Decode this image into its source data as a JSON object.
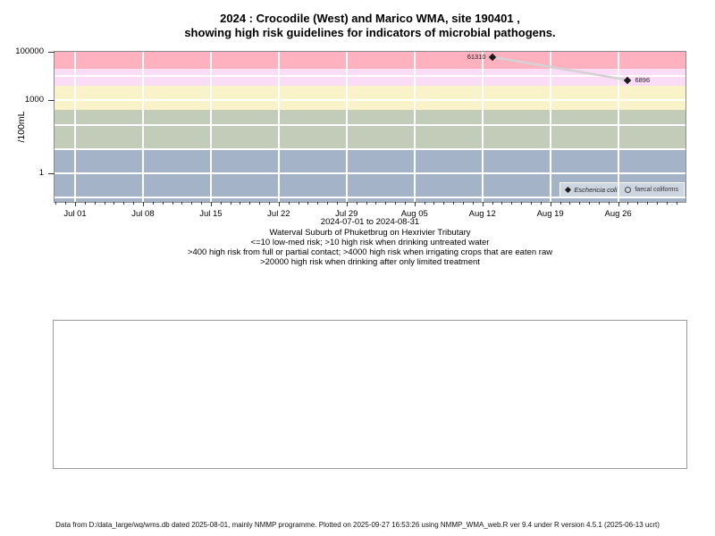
{
  "chart_data": {
    "type": "scatter",
    "title_lines": [
      "2024 : Crocodile (West) and Marico WMA, site 190401 ,",
      "showing high risk guidelines for indicators of microbial pathogens."
    ],
    "x_axis": {
      "label": "2024-07-01 to 2024-08-31",
      "tick_labels": [
        "Jul 01",
        "Jul 08",
        "Jul 15",
        "Jul 22",
        "Jul 29",
        "Aug 05",
        "Aug 12",
        "Aug 19",
        "Aug 26"
      ],
      "tick_days": [
        0,
        7,
        14,
        21,
        28,
        35,
        42,
        49,
        56
      ],
      "minor_tick_unit": "day",
      "range_days": [
        -2,
        62
      ]
    },
    "y_axis": {
      "label": "/100mL",
      "scale": "log10",
      "tick_labels": [
        "100000",
        "1000",
        "1"
      ],
      "tick_values": [
        100000,
        1000,
        1
      ],
      "top_value": 100000
    },
    "series": [
      {
        "name": "Eschericia coli",
        "symbol": "filled-diamond",
        "points": [
          {
            "day": 43,
            "value": 61310,
            "label": "61310",
            "label_side": "left"
          },
          {
            "day": 57,
            "value": 6896,
            "label": "6896",
            "label_side": "right"
          }
        ]
      },
      {
        "name": "faecal coliforms",
        "symbol": "open-circle",
        "points": []
      }
    ],
    "risk_bands": [
      {
        "min": 20000,
        "max": null,
        "color": "#ffb1c0"
      },
      {
        "min": 4000,
        "max": 20000,
        "color": "#fbdcf7"
      },
      {
        "min": 400,
        "max": 4000,
        "color": "#faf3c9"
      },
      {
        "min": 10,
        "max": 400,
        "color": "#c3ccb8"
      },
      {
        "min": null,
        "max": 10,
        "color": "#a5b3c9"
      }
    ],
    "gridline_color": "#ffffff",
    "connector_color": "#d2d2d2",
    "point_color": "#1c1c1c",
    "legend_position": "bottom-right"
  },
  "captions": [
    "Waterval Suburb of Phuketbrug on Hexrivier Tributary",
    "<=10 low-med risk; >10 high risk when drinking untreated water",
    ">400 high risk from full or partial contact; >4000 high risk when irrigating crops that are eaten raw",
    ">20000 high risk when drinking after only limited treatment"
  ],
  "footer": "Data from D:/data_large/wq/wms.db dated 2025-08-01, mainly NMMP programme. Plotted on 2025-09-27 16:53:26 using NMMP_WMA_web.R ver 9.4 under R version 4.5.1 (2025-06-13 ucrt)"
}
